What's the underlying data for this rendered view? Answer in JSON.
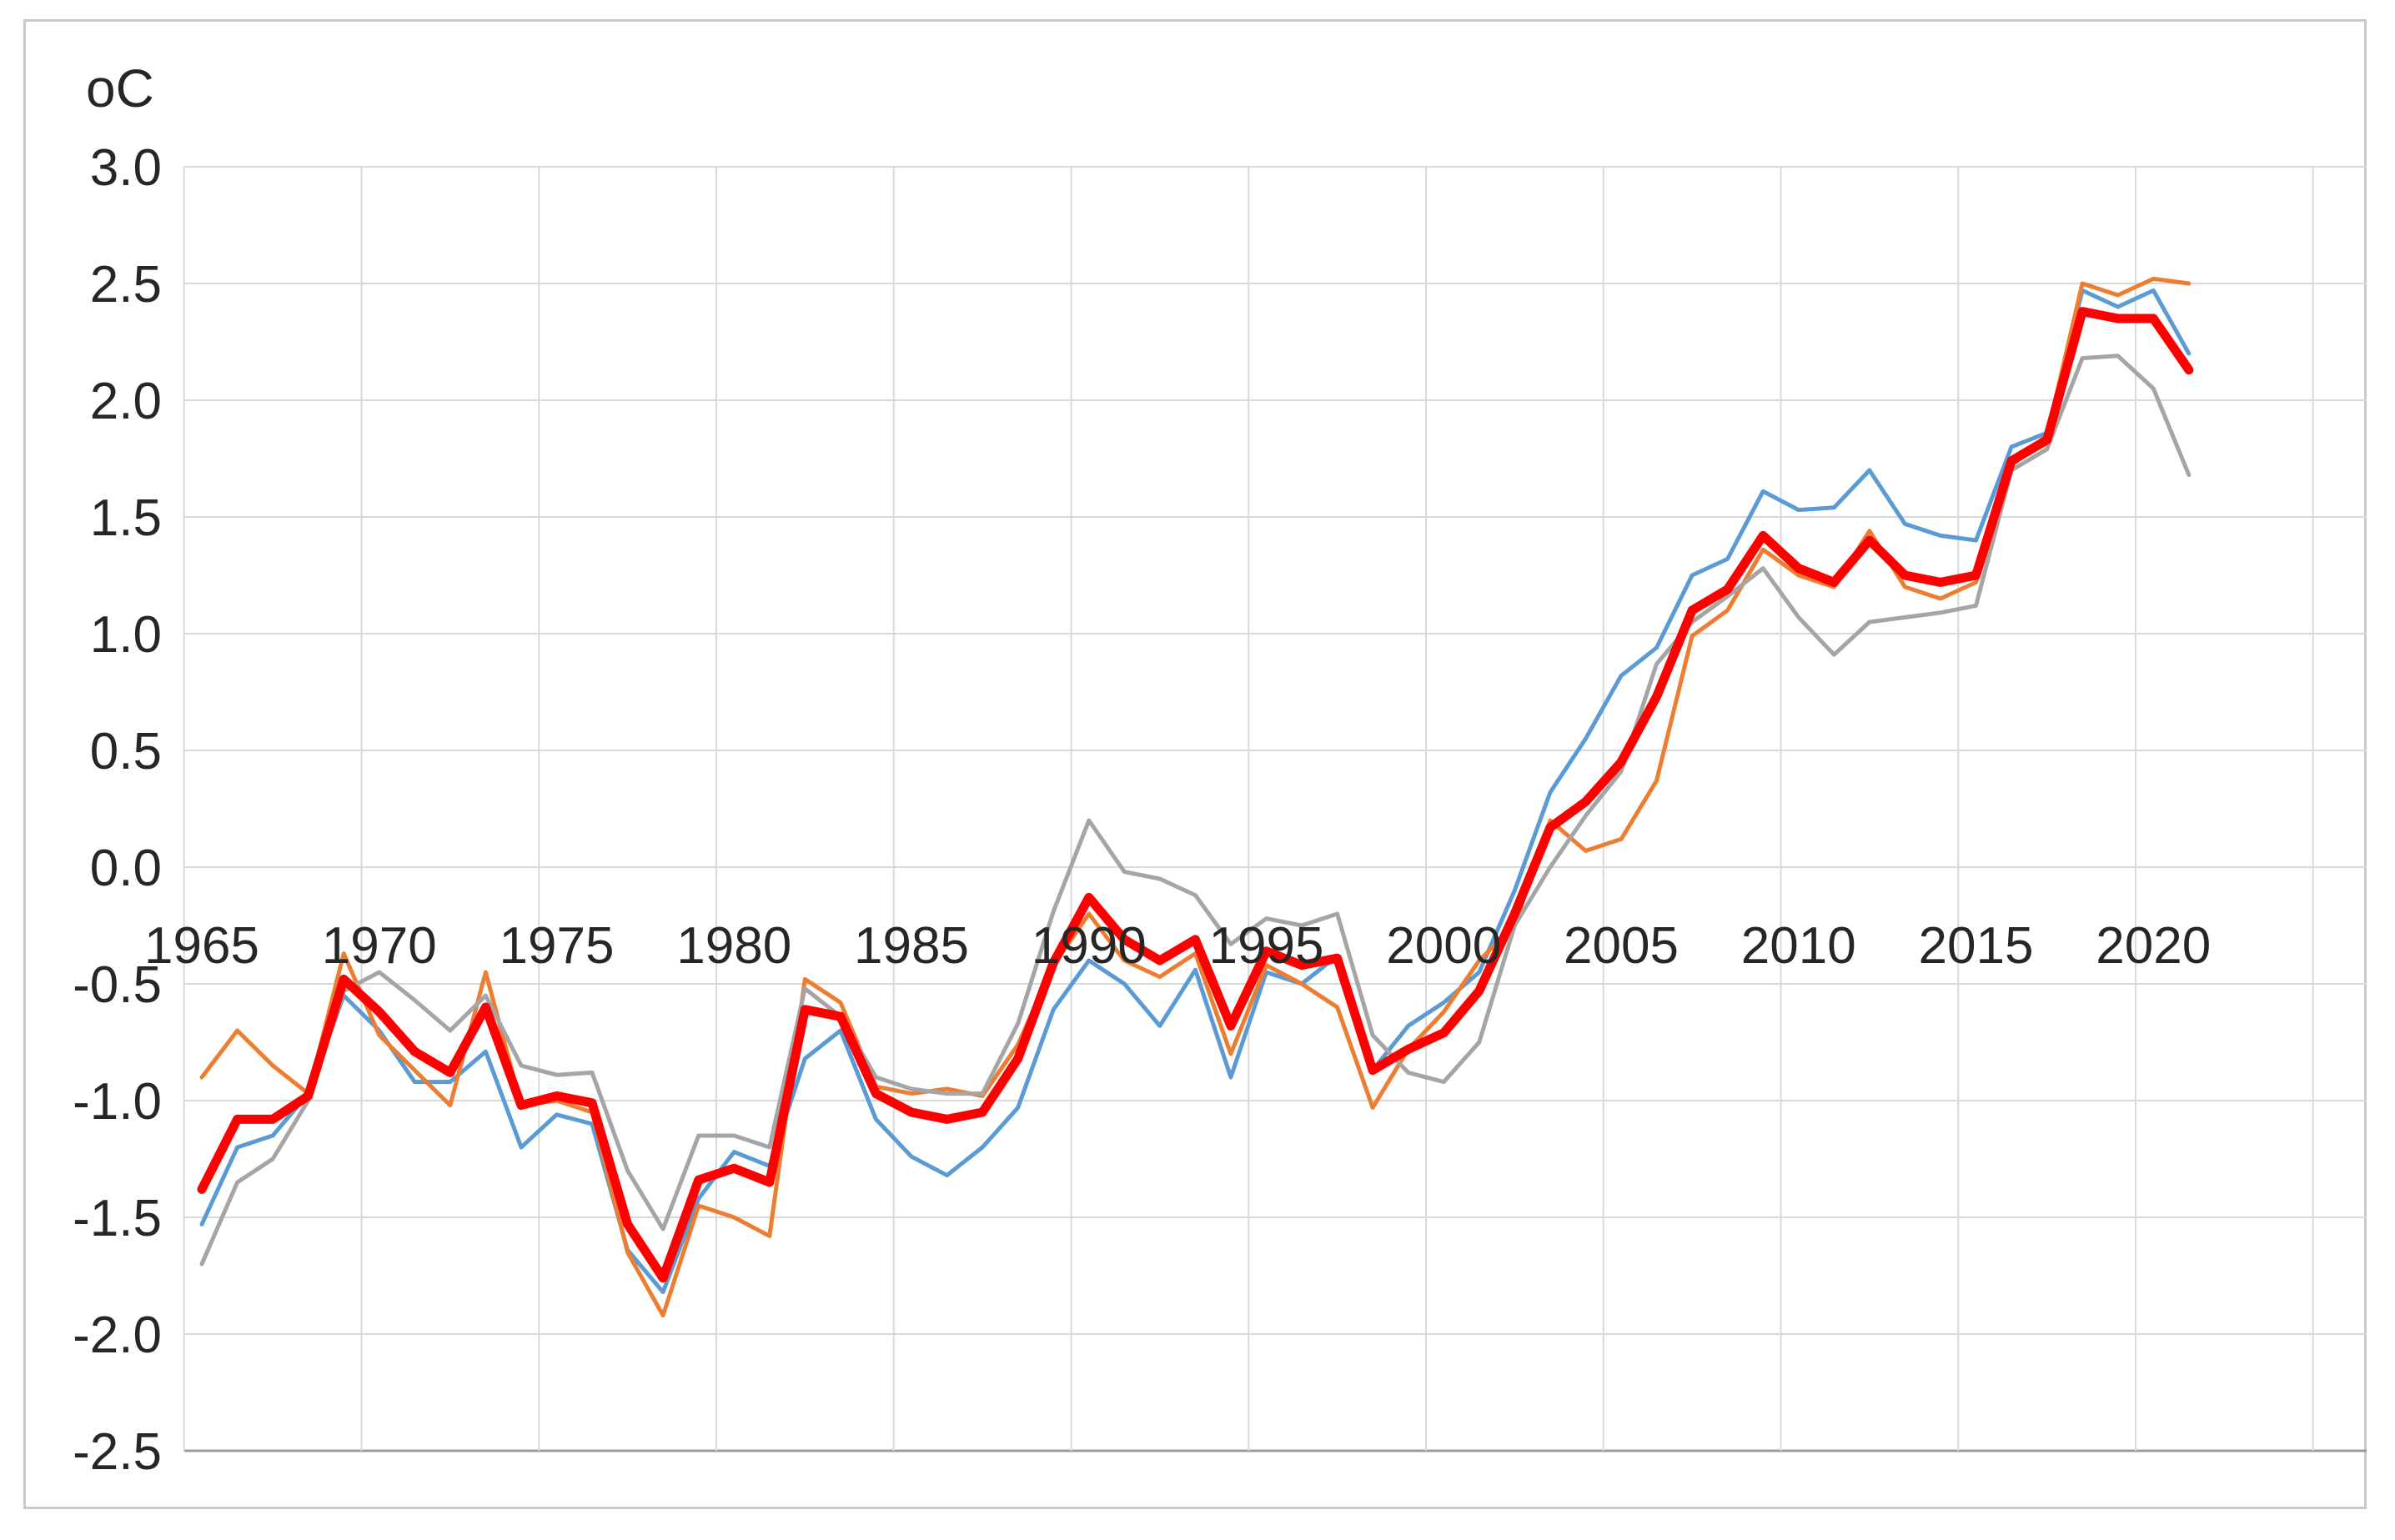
{
  "unit_label": "oC",
  "chart_data": {
    "type": "line",
    "title": "",
    "xlabel": "",
    "ylabel": "oC",
    "ylim": [
      -2.5,
      3.0
    ],
    "y_tick_step": 0.5,
    "y_tick_labels": [
      "3.0",
      "2.5",
      "2.0",
      "1.5",
      "1.0",
      "0.5",
      "0.0",
      "-0.5",
      "-1.0",
      "-1.5",
      "-2.0",
      "-2.5"
    ],
    "x_tick_labels": [
      "1965",
      "1970",
      "1975",
      "1980",
      "1985",
      "1990",
      "1995",
      "2000",
      "2005",
      "2010",
      "2015",
      "2020"
    ],
    "x_tick_years": [
      1965,
      1970,
      1975,
      1980,
      1985,
      1990,
      1995,
      2000,
      2005,
      2010,
      2015,
      2020
    ],
    "grid": true,
    "legend_position": "none",
    "x": [
      1965,
      1966,
      1967,
      1968,
      1969,
      1970,
      1971,
      1972,
      1973,
      1974,
      1975,
      1976,
      1977,
      1978,
      1979,
      1980,
      1981,
      1982,
      1983,
      1984,
      1985,
      1986,
      1987,
      1988,
      1989,
      1990,
      1991,
      1992,
      1993,
      1994,
      1995,
      1996,
      1997,
      1998,
      1999,
      2000,
      2001,
      2002,
      2003,
      2004,
      2005,
      2006,
      2007,
      2008,
      2009,
      2010,
      2011,
      2012,
      2013,
      2014,
      2015,
      2016,
      2017,
      2018,
      2019,
      2020,
      2021
    ],
    "series": [
      {
        "name": "series-blue",
        "color": "#5B9BD5",
        "width": 5,
        "values": [
          -1.53,
          -1.2,
          -1.15,
          -0.97,
          -0.55,
          -0.7,
          -0.92,
          -0.92,
          -0.79,
          -1.2,
          -1.06,
          -1.1,
          -1.64,
          -1.82,
          -1.42,
          -1.22,
          -1.28,
          -0.82,
          -0.7,
          -1.08,
          -1.24,
          -1.32,
          -1.2,
          -1.03,
          -0.61,
          -0.4,
          -0.5,
          -0.68,
          -0.44,
          -0.9,
          -0.45,
          -0.5,
          -0.38,
          -0.87,
          -0.68,
          -0.58,
          -0.45,
          -0.1,
          0.32,
          0.55,
          0.82,
          0.94,
          1.25,
          1.32,
          1.61,
          1.53,
          1.54,
          1.7,
          1.47,
          1.42,
          1.4,
          1.8,
          1.86,
          2.47,
          2.4,
          2.47,
          2.2
        ]
      },
      {
        "name": "series-orange",
        "color": "#ED7D31",
        "width": 5,
        "values": [
          -0.9,
          -0.7,
          -0.85,
          -0.97,
          -0.37,
          -0.72,
          -0.87,
          -1.02,
          -0.45,
          -1.02,
          -1.0,
          -1.05,
          -1.65,
          -1.92,
          -1.45,
          -1.5,
          -1.58,
          -0.48,
          -0.58,
          -0.94,
          -0.97,
          -0.95,
          -0.98,
          -0.76,
          -0.42,
          -0.2,
          -0.4,
          -0.47,
          -0.37,
          -0.8,
          -0.42,
          -0.5,
          -0.6,
          -1.03,
          -0.78,
          -0.62,
          -0.4,
          -0.25,
          0.2,
          0.07,
          0.12,
          0.37,
          0.99,
          1.1,
          1.36,
          1.25,
          1.2,
          1.44,
          1.2,
          1.15,
          1.22,
          1.72,
          1.85,
          2.5,
          2.45,
          2.52,
          2.5
        ]
      },
      {
        "name": "series-gray",
        "color": "#A5A5A5",
        "width": 5,
        "values": [
          -1.7,
          -1.35,
          -1.25,
          -1.0,
          -0.53,
          -0.45,
          -0.57,
          -0.7,
          -0.55,
          -0.85,
          -0.89,
          -0.88,
          -1.3,
          -1.55,
          -1.15,
          -1.15,
          -1.2,
          -0.52,
          -0.64,
          -0.9,
          -0.95,
          -0.97,
          -0.97,
          -0.67,
          -0.19,
          0.2,
          -0.02,
          -0.05,
          -0.12,
          -0.33,
          -0.22,
          -0.25,
          -0.2,
          -0.72,
          -0.88,
          -0.92,
          -0.75,
          -0.25,
          0.0,
          0.22,
          0.41,
          0.87,
          1.05,
          1.16,
          1.28,
          1.07,
          0.91,
          1.05,
          1.07,
          1.09,
          1.12,
          1.7,
          1.79,
          2.18,
          2.19,
          2.05,
          1.68
        ]
      },
      {
        "name": "series-red-average",
        "color": "#FF0000",
        "width": 11,
        "values": [
          -1.38,
          -1.08,
          -1.08,
          -0.98,
          -0.48,
          -0.62,
          -0.79,
          -0.88,
          -0.6,
          -1.02,
          -0.98,
          -1.01,
          -1.53,
          -1.76,
          -1.34,
          -1.29,
          -1.35,
          -0.61,
          -0.64,
          -0.97,
          -1.05,
          -1.08,
          -1.05,
          -0.82,
          -0.41,
          -0.13,
          -0.31,
          -0.4,
          -0.31,
          -0.68,
          -0.36,
          -0.42,
          -0.39,
          -0.87,
          -0.78,
          -0.71,
          -0.53,
          -0.2,
          0.17,
          0.28,
          0.45,
          0.73,
          1.1,
          1.19,
          1.42,
          1.28,
          1.22,
          1.4,
          1.25,
          1.22,
          1.25,
          1.74,
          1.83,
          2.38,
          2.35,
          2.35,
          2.13
        ]
      }
    ]
  },
  "colors": {
    "grid": "#D9D9D9",
    "axis_bottom": "#9B9B9B",
    "frame_border": "#C9C9C9",
    "tick_text": "#262626",
    "background": "#FFFFFF"
  }
}
